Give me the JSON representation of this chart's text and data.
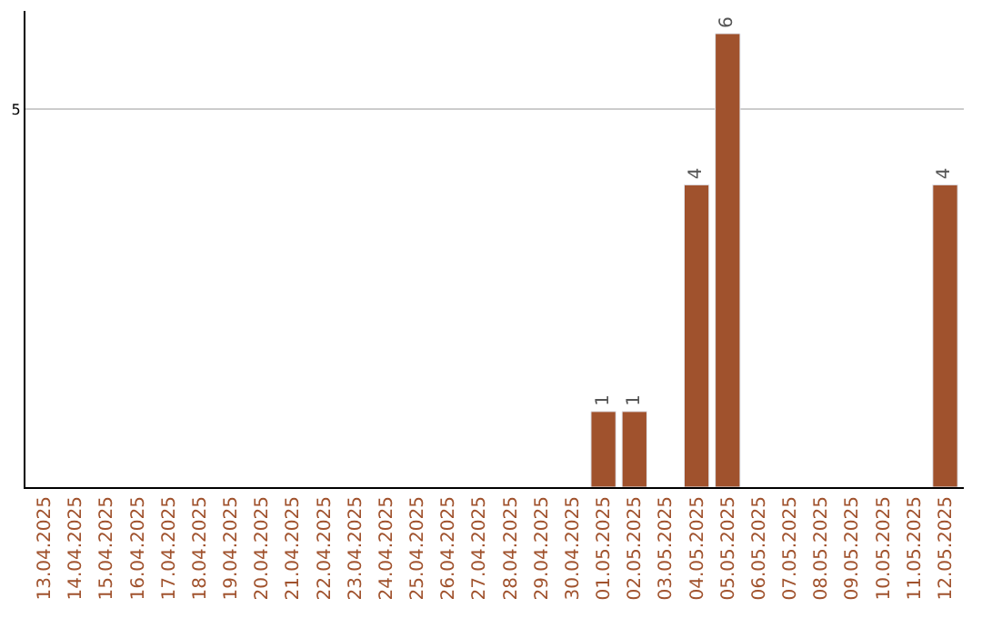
{
  "chart_data": {
    "type": "bar",
    "categories": [
      "13.04.2025",
      "14.04.2025",
      "15.04.2025",
      "16.04.2025",
      "17.04.2025",
      "18.04.2025",
      "19.04.2025",
      "20.04.2025",
      "21.04.2025",
      "22.04.2025",
      "23.04.2025",
      "24.04.2025",
      "25.04.2025",
      "26.04.2025",
      "27.04.2025",
      "28.04.2025",
      "29.04.2025",
      "30.04.2025",
      "01.05.2025",
      "02.05.2025",
      "03.05.2025",
      "04.05.2025",
      "05.05.2025",
      "06.05.2025",
      "07.05.2025",
      "08.05.2025",
      "09.05.2025",
      "10.05.2025",
      "11.05.2025",
      "12.05.2025"
    ],
    "values": [
      null,
      null,
      null,
      null,
      null,
      null,
      null,
      null,
      null,
      null,
      null,
      null,
      null,
      null,
      null,
      null,
      null,
      null,
      1,
      1,
      null,
      4,
      6,
      null,
      null,
      null,
      null,
      null,
      null,
      4
    ],
    "data_labels": true,
    "color": "#a0522d",
    "ylim": [
      0,
      6.3
    ],
    "yticks": [
      5
    ],
    "grid": "y"
  }
}
